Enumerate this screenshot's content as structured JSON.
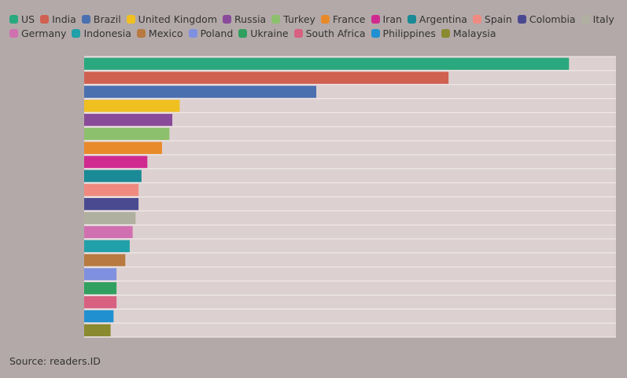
{
  "chart_data": {
    "type": "bar",
    "orientation": "horizontal",
    "categories": [
      "US",
      "India",
      "Brazil",
      "United Kingdom",
      "Russia",
      "Turkey",
      "France",
      "Iran",
      "Argentina",
      "Spain",
      "Colombia",
      "Italy",
      "Germany",
      "Indonesia",
      "Mexico",
      "Poland",
      "Ukraine",
      "South Africa",
      "Philippines",
      "Malaysia"
    ],
    "values": [
      33.0,
      24.8,
      15.8,
      6.5,
      6.0,
      5.8,
      5.3,
      4.3,
      3.9,
      3.7,
      3.7,
      3.5,
      3.3,
      3.1,
      2.8,
      2.2,
      2.2,
      2.2,
      2.0,
      1.8
    ],
    "colors": [
      "#2aa87e",
      "#d06050",
      "#4a70b0",
      "#f0c020",
      "#8a4a9a",
      "#8cc06c",
      "#e88a2a",
      "#d02a90",
      "#1a8a96",
      "#f08a80",
      "#4a4a90",
      "#b0b0a0",
      "#d070b0",
      "#20a0a8",
      "#b87a40",
      "#8090e0",
      "#30a060",
      "#d86080",
      "#2090d0",
      "#8a8a30"
    ],
    "xlim": [
      0,
      36.2
    ],
    "source": "Source: readers.ID"
  }
}
